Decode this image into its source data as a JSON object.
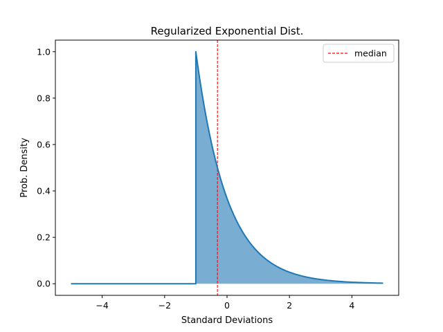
{
  "chart_data": {
    "type": "line",
    "title": "Regularized Exponential Dist.",
    "xlabel": "Standard Deviations",
    "ylabel": "Prob. Density",
    "xlim": [
      -5.5,
      5.5
    ],
    "ylim": [
      -0.05,
      1.05
    ],
    "x_ticks": [
      -4,
      -2,
      0,
      2,
      4
    ],
    "x_tick_labels": [
      "−4",
      "−2",
      "0",
      "2",
      "4"
    ],
    "y_ticks": [
      0.0,
      0.2,
      0.4,
      0.6,
      0.8,
      1.0
    ],
    "y_tick_labels": [
      "0.0",
      "0.2",
      "0.4",
      "0.6",
      "0.8",
      "1.0"
    ],
    "grid": false,
    "legend_position": "top-right",
    "series": [
      {
        "name": "",
        "kind": "density-line-filled",
        "color": "#1f77b4",
        "fill_color": "#1f77b4",
        "x": [
          -5.0,
          -1.0,
          -1.0,
          -0.9,
          -0.8,
          -0.7,
          -0.6,
          -0.5,
          -0.4,
          -0.3,
          -0.2,
          -0.1,
          0.0,
          0.25,
          0.5,
          0.75,
          1.0,
          1.5,
          2.0,
          2.5,
          3.0,
          3.5,
          4.0,
          4.5,
          5.0
        ],
        "y": [
          0.0,
          0.0,
          1.0,
          0.905,
          0.819,
          0.741,
          0.67,
          0.607,
          0.549,
          0.497,
          0.449,
          0.407,
          0.368,
          0.287,
          0.223,
          0.174,
          0.135,
          0.082,
          0.05,
          0.03,
          0.018,
          0.011,
          0.007,
          0.004,
          0.002
        ]
      },
      {
        "name": "median",
        "kind": "vline",
        "color": "#ff0000",
        "style": "dashed",
        "x": -0.307
      }
    ]
  }
}
